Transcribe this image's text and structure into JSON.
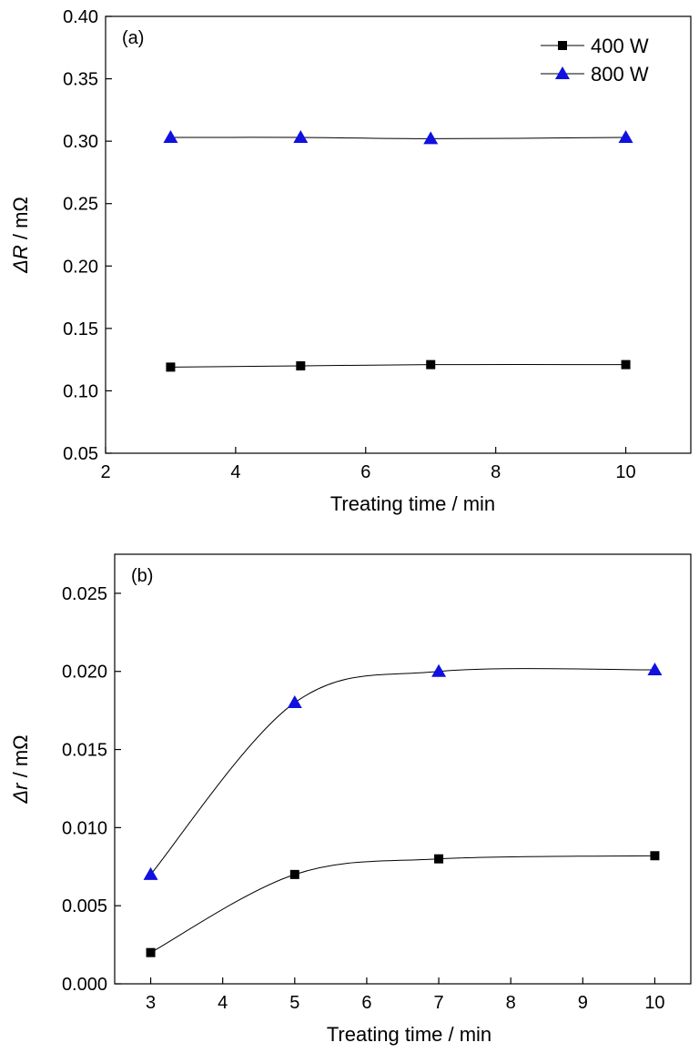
{
  "chart_data": [
    {
      "type": "line",
      "panel_label": "(a)",
      "xlabel": "Treating time / min",
      "ylabel_prefix": "ΔR",
      "ylabel_suffix": " / mΩ",
      "xlim": [
        2,
        11
      ],
      "ylim": [
        0.05,
        0.4
      ],
      "xticks": [
        2,
        4,
        6,
        8,
        10
      ],
      "yticks": [
        0.05,
        0.1,
        0.15,
        0.2,
        0.25,
        0.3,
        0.35,
        0.4
      ],
      "ytick_decimals": 2,
      "grid": false,
      "legend": "top-right",
      "series": [
        {
          "name": "400 W",
          "marker": "square",
          "color": "#000000",
          "x": [
            3,
            5,
            7,
            10
          ],
          "y": [
            0.119,
            0.12,
            0.121,
            0.121
          ]
        },
        {
          "name": "800 W",
          "marker": "triangle",
          "color": "#1010e0",
          "x": [
            3,
            5,
            7,
            10
          ],
          "y": [
            0.303,
            0.303,
            0.302,
            0.303
          ]
        }
      ]
    },
    {
      "type": "line",
      "panel_label": "(b)",
      "xlabel": "Treating time / min",
      "ylabel_prefix": "Δr",
      "ylabel_suffix": " / mΩ",
      "xlim": [
        2.5,
        10.5
      ],
      "ylim": [
        0.0,
        0.0275
      ],
      "xticks": [
        3,
        4,
        5,
        6,
        7,
        8,
        9,
        10
      ],
      "yticks": [
        0.0,
        0.005,
        0.01,
        0.015,
        0.02,
        0.025
      ],
      "ytick_decimals": 3,
      "grid": false,
      "series": [
        {
          "name": "400 W",
          "marker": "square",
          "color": "#000000",
          "x": [
            3,
            5,
            7,
            10
          ],
          "y": [
            0.002,
            0.007,
            0.008,
            0.0082
          ]
        },
        {
          "name": "800 W",
          "marker": "triangle",
          "color": "#1010e0",
          "x": [
            3,
            5,
            7,
            10
          ],
          "y": [
            0.007,
            0.018,
            0.02,
            0.0201
          ]
        }
      ]
    }
  ]
}
